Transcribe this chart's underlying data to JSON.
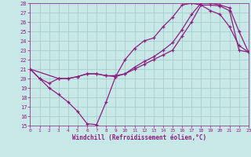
{
  "xlabel": "Windchill (Refroidissement éolien,°C)",
  "xlim": [
    0,
    23
  ],
  "ylim": [
    15,
    28
  ],
  "yticks": [
    15,
    16,
    17,
    18,
    19,
    20,
    21,
    22,
    23,
    24,
    25,
    26,
    27,
    28
  ],
  "xticks": [
    0,
    1,
    2,
    3,
    4,
    5,
    6,
    7,
    8,
    9,
    10,
    11,
    12,
    13,
    14,
    15,
    16,
    17,
    18,
    19,
    20,
    21,
    22,
    23
  ],
  "bg_color": "#c8e8e8",
  "grid_color": "#a0c8c8",
  "line_color": "#8b2080",
  "line1_x": [
    0,
    1,
    2,
    3,
    4,
    5,
    6,
    7,
    8,
    9,
    10,
    11,
    12,
    13,
    14,
    15,
    16,
    17,
    18,
    19,
    20,
    21,
    22,
    23
  ],
  "line1_y": [
    21.0,
    20.0,
    19.0,
    18.3,
    17.5,
    16.5,
    15.2,
    15.1,
    17.5,
    20.2,
    22.0,
    23.2,
    24.0,
    24.3,
    25.5,
    26.5,
    27.8,
    28.0,
    27.8,
    27.2,
    26.8,
    25.5,
    23.5,
    22.8
  ],
  "line2_x": [
    0,
    1,
    2,
    3,
    4,
    5,
    6,
    7,
    8,
    9,
    10,
    11,
    12,
    13,
    14,
    15,
    16,
    17,
    18,
    19,
    20,
    21,
    22,
    23
  ],
  "line2_y": [
    21.0,
    20.0,
    19.5,
    20.0,
    20.0,
    20.2,
    20.5,
    20.5,
    20.3,
    20.3,
    20.5,
    21.0,
    21.5,
    22.0,
    22.5,
    23.0,
    24.5,
    26.0,
    27.8,
    27.8,
    27.7,
    27.2,
    23.0,
    22.8
  ],
  "line3_x": [
    0,
    3,
    4,
    5,
    6,
    7,
    8,
    9,
    10,
    11,
    12,
    13,
    14,
    15,
    16,
    17,
    18,
    19,
    20,
    21,
    22,
    23
  ],
  "line3_y": [
    21.0,
    20.0,
    20.0,
    20.2,
    20.5,
    20.5,
    20.3,
    20.2,
    20.5,
    21.2,
    21.8,
    22.3,
    23.0,
    23.8,
    25.2,
    26.8,
    28.0,
    28.0,
    27.8,
    27.5,
    25.0,
    22.8
  ]
}
